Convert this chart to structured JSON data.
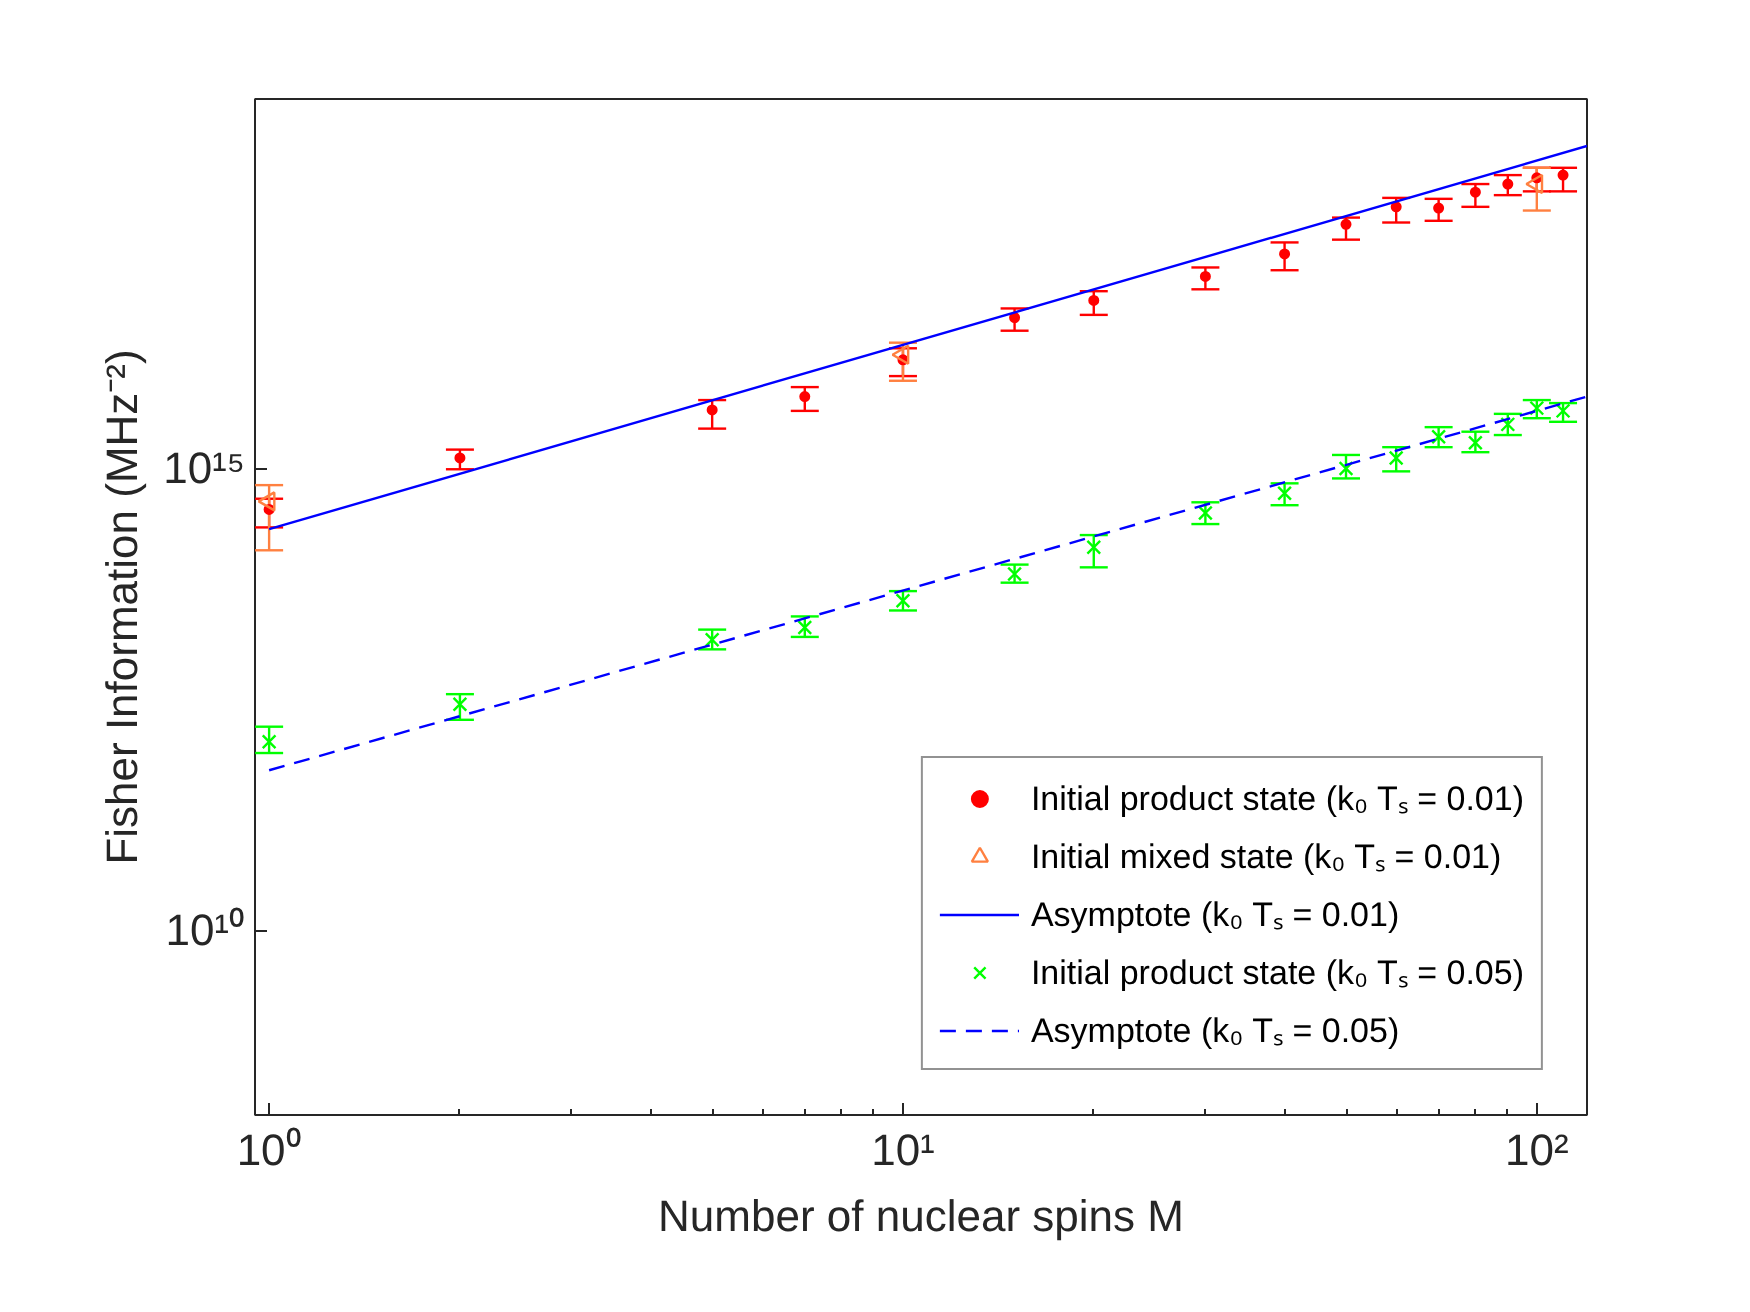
{
  "chart_data": {
    "type": "scatter",
    "xlabel": "Number of nuclear spins M",
    "ylabel": "Fisher Information (MHz⁻²)",
    "log": "xy",
    "xlim": [
      0.95,
      120
    ],
    "ylim": [
      100000000.0,
      1e+19
    ],
    "xticks": [
      {
        "value": 1,
        "label": "10⁰"
      },
      {
        "value": 10,
        "label": "10¹"
      },
      {
        "value": 100,
        "label": "10²"
      }
    ],
    "yticks": [
      {
        "value": 10000000000.0,
        "label": "10¹⁰"
      },
      {
        "value": 1000000000000000.0,
        "label": "10¹⁵"
      }
    ],
    "grid": false,
    "legend": "bottom right",
    "series": [
      {
        "name": "Initial product state (k₀ Tₛ = 0.01)",
        "marker": "circle",
        "color": "#ff0000",
        "x": [
          1,
          2,
          5,
          7,
          10,
          15,
          20,
          30,
          40,
          50,
          60,
          70,
          80,
          90,
          100,
          110
        ],
        "values": [
          360000000000000.0,
          1300000000000000.0,
          4300000000000000.0,
          6000000000000000.0,
          1.5e+16,
          4.3e+16,
          6.6e+16,
          1.2e+17,
          2.1e+17,
          4.4e+17,
          6.8e+17,
          6.6e+17,
          9.8e+17,
          1.2e+18,
          1.4e+18,
          1.5e+18
        ],
        "errors": [
          [
            230000000000000.0,
            470000000000000.0
          ],
          [
            980000000000000.0,
            1600000000000000.0
          ],
          [
            2700000000000000.0,
            5500000000000000.0
          ],
          [
            4200000000000000.0,
            7600000000000000.0
          ],
          [
            1e+16,
            2e+16
          ],
          [
            3.1e+16,
            5.4e+16
          ],
          [
            4.6e+16,
            8.3e+16
          ],
          [
            8.7e+16,
            1.5e+17
          ],
          [
            1.4e+17,
            2.8e+17
          ],
          [
            3e+17,
            5.2e+17
          ],
          [
            4.6e+17,
            8.5e+17
          ],
          [
            4.8e+17,
            8.3e+17
          ],
          [
            6.8e+17,
            1.2e+18
          ],
          [
            9.1e+17,
            1.5e+18
          ],
          [
            1e+18,
            1.8e+18
          ],
          [
            1e+18,
            1.8e+18
          ]
        ]
      },
      {
        "name": "Initial mixed state (k₀ Tₛ = 0.01)",
        "marker": "triangle",
        "color": "#ff8040",
        "x": [
          1,
          10,
          100
        ],
        "values": [
          440000000000000.0,
          1.7e+16,
          1.2e+18
        ],
        "errors": [
          [
            130000000000000.0,
            660000000000000.0
          ],
          [
            8900000000000000.0,
            2.3e+16
          ],
          [
            6.2e+17,
            1.8e+18
          ]
        ]
      },
      {
        "name": "Asymptote (k₀ Tₛ = 0.01)",
        "type": "line",
        "line_style": "solid",
        "marker": "none",
        "color": "#0000ff",
        "x": [
          1,
          120
        ],
        "values": [
          220000000000000.0,
          3.1e+18
        ]
      },
      {
        "name": "Initial product state (k₀ Tₛ = 0.05)",
        "marker": "cross",
        "color": "#00ff00",
        "x": [
          1,
          2,
          5,
          7,
          10,
          15,
          20,
          30,
          40,
          50,
          60,
          70,
          80,
          90,
          100,
          110
        ],
        "values": [
          1100000000000.0,
          2800000000000.0,
          14000000000000.0,
          19000000000000.0,
          37000000000000.0,
          72000000000000.0,
          140000000000000.0,
          330000000000000.0,
          540000000000000.0,
          1000000000000000.0,
          1300000000000000.0,
          2200000000000000.0,
          1900000000000000.0,
          3000000000000000.0,
          4500000000000000.0,
          4200000000000000.0
        ],
        "errors": [
          [
            830000000000.0,
            1600000000000.0
          ],
          [
            1900000000000.0,
            3600000000000.0
          ],
          [
            11000000000000.0,
            18000000000000.0
          ],
          [
            15000000000000.0,
            25000000000000.0
          ],
          [
            29000000000000.0,
            47000000000000.0
          ],
          [
            58000000000000.0,
            91000000000000.0
          ],
          [
            85000000000000.0,
            190000000000000.0
          ],
          [
            250000000000000.0,
            430000000000000.0
          ],
          [
            400000000000000.0,
            690000000000000.0
          ],
          [
            780000000000000.0,
            1400000000000000.0
          ],
          [
            930000000000000.0,
            1700000000000000.0
          ],
          [
            1700000000000000.0,
            2800000000000000.0
          ],
          [
            1500000000000000.0,
            2500000000000000.0
          ],
          [
            2300000000000000.0,
            3900000000000000.0
          ],
          [
            3500000000000000.0,
            5500000000000000.0
          ],
          [
            3200000000000000.0,
            5100000000000000.0
          ]
        ]
      },
      {
        "name": "Asymptote (k₀ Tₛ = 0.05)",
        "type": "line",
        "line_style": "dashed",
        "marker": "none",
        "color": "#0000ff",
        "x": [
          1,
          120
        ],
        "values": [
          540000000000.0,
          6000000000000000.0
        ]
      }
    ]
  }
}
